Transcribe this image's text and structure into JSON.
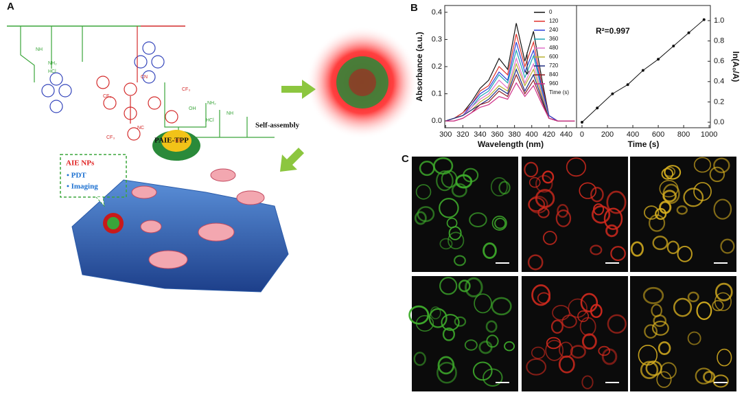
{
  "panels": {
    "a": {
      "label": "A",
      "polymer_name": "PAIE-TPP",
      "process": "Self-assembly",
      "box_title": "AIE NPs",
      "box_items": [
        "• PDT",
        "• Imaging"
      ],
      "chem_labels": [
        "NH",
        "NH₂",
        "HCl",
        "CN",
        "NC",
        "CF₃",
        "CF₃",
        "CF₃",
        "CF₃",
        "OH",
        "HCl",
        "NH₂",
        "NH"
      ]
    },
    "b": {
      "label": "B"
    },
    "c": {
      "label": "C"
    }
  },
  "chart_data": [
    {
      "type": "line",
      "xlabel": "Wavelength (nm)",
      "ylabel": "Absorbance (a.u.)",
      "x": [
        300,
        310,
        320,
        330,
        340,
        350,
        362,
        372,
        382,
        392,
        402,
        412,
        420,
        430,
        440,
        450
      ],
      "xlim": [
        299,
        452
      ],
      "xticks": [
        300,
        320,
        340,
        360,
        380,
        400,
        420,
        440
      ],
      "ylim": [
        -0.025,
        0.425
      ],
      "yticks": [
        {
          "value": 0,
          "label": "0.0"
        },
        0.1,
        0.2,
        0.3,
        0.4
      ],
      "legend_title": "Time (s)",
      "legend": "upper right",
      "series": [
        {
          "name": "0",
          "color": "#111111",
          "values": [
            0,
            0.01,
            0.03,
            0.07,
            0.12,
            0.15,
            0.23,
            0.19,
            0.36,
            0.22,
            0.33,
            0.15,
            0.02,
            0,
            0,
            0
          ]
        },
        {
          "name": "120",
          "color": "#e0302a",
          "values": [
            0,
            0.01,
            0.03,
            0.06,
            0.11,
            0.13,
            0.2,
            0.17,
            0.32,
            0.2,
            0.29,
            0.13,
            0.02,
            0,
            0,
            0
          ]
        },
        {
          "name": "240",
          "color": "#2a3fd8",
          "values": [
            0,
            0.01,
            0.02,
            0.06,
            0.1,
            0.12,
            0.18,
            0.15,
            0.29,
            0.18,
            0.26,
            0.12,
            0.02,
            0,
            0,
            0
          ]
        },
        {
          "name": "360",
          "color": "#1aa5b5",
          "values": [
            0,
            0.01,
            0.02,
            0.05,
            0.09,
            0.11,
            0.17,
            0.14,
            0.26,
            0.16,
            0.24,
            0.11,
            0.01,
            0,
            0,
            0
          ]
        },
        {
          "name": "480",
          "color": "#e070c8",
          "values": [
            0,
            0.01,
            0.02,
            0.05,
            0.08,
            0.1,
            0.15,
            0.12,
            0.23,
            0.14,
            0.21,
            0.1,
            0.01,
            0,
            0,
            0
          ]
        },
        {
          "name": "600",
          "color": "#b8b030",
          "values": [
            0,
            0.01,
            0.02,
            0.04,
            0.07,
            0.09,
            0.13,
            0.11,
            0.21,
            0.13,
            0.19,
            0.09,
            0.01,
            0,
            0,
            0
          ]
        },
        {
          "name": "720",
          "color": "#1c2a80",
          "values": [
            0,
            0.01,
            0.02,
            0.04,
            0.06,
            0.08,
            0.12,
            0.1,
            0.19,
            0.11,
            0.17,
            0.08,
            0.01,
            0,
            0,
            0
          ]
        },
        {
          "name": "840",
          "color": "#8a1a22",
          "values": [
            0,
            0,
            0.01,
            0.03,
            0.06,
            0.07,
            0.11,
            0.09,
            0.17,
            0.1,
            0.15,
            0.07,
            0.01,
            0,
            0,
            0
          ]
        },
        {
          "name": "960",
          "color": "#d0308a",
          "values": [
            0,
            0,
            0.01,
            0.03,
            0.05,
            0.06,
            0.09,
            0.08,
            0.14,
            0.09,
            0.13,
            0.06,
            0.01,
            0,
            0,
            0
          ]
        }
      ]
    },
    {
      "type": "scatter",
      "xlabel": "Time (s)",
      "ylabel": "ln(A₀/A)",
      "annotation": "R²=0.997",
      "y_axis_side": "right",
      "color": "#111111",
      "fit_line": true,
      "x": [
        0,
        120,
        240,
        360,
        480,
        600,
        720,
        840,
        960
      ],
      "values": [
        0,
        0.14,
        0.28,
        0.37,
        0.51,
        0.62,
        0.75,
        0.88,
        1.01
      ],
      "xlim": [
        -43,
        1010
      ],
      "xticks": [
        0,
        200,
        400,
        600,
        800,
        1000
      ],
      "ylim": [
        -0.054,
        1.149
      ],
      "yticks": [
        {
          "value": 0,
          "label": "0.0"
        },
        0.2,
        0.4,
        0.6,
        0.8,
        {
          "value": 1,
          "label": "1.0"
        }
      ]
    }
  ]
}
